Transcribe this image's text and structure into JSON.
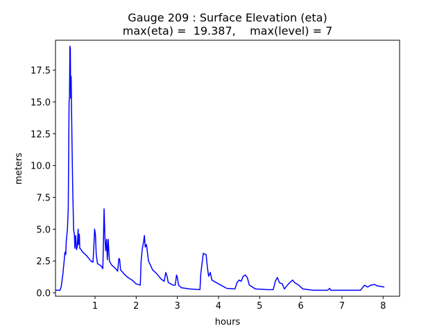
{
  "chart_data": {
    "type": "line",
    "title": [
      "Gauge 209 : Surface Elevation (eta)",
      "max(eta) =  19.387,    max(level) = 7"
    ],
    "xlabel": "hours",
    "ylabel": "meters",
    "x": [
      0.04,
      0.15,
      0.18,
      0.22,
      0.25,
      0.27,
      0.29,
      0.3,
      0.33,
      0.35,
      0.37,
      0.38,
      0.39,
      0.4,
      0.41,
      0.42,
      0.43,
      0.44,
      0.46,
      0.48,
      0.5,
      0.51,
      0.53,
      0.55,
      0.57,
      0.59,
      0.6,
      0.62,
      0.63,
      0.66,
      0.7,
      0.8,
      0.9,
      0.95,
      0.97,
      0.99,
      1.01,
      1.03,
      1.06,
      1.15,
      1.19,
      1.2,
      1.22,
      1.24,
      1.26,
      1.28,
      1.3,
      1.32,
      1.35,
      1.4,
      1.5,
      1.55,
      1.58,
      1.6,
      1.62,
      1.7,
      1.8,
      1.9,
      2.0,
      2.1,
      2.12,
      2.15,
      2.18,
      2.2,
      2.22,
      2.25,
      2.3,
      2.4,
      2.5,
      2.6,
      2.68,
      2.72,
      2.75,
      2.78,
      2.9,
      2.95,
      2.98,
      3.0,
      3.03,
      3.1,
      3.3,
      3.55,
      3.57,
      3.6,
      3.63,
      3.7,
      3.73,
      3.76,
      3.8,
      3.84,
      4.0,
      4.2,
      4.4,
      4.45,
      4.5,
      4.55,
      4.6,
      4.65,
      4.7,
      4.75,
      4.9,
      5.2,
      5.33,
      5.38,
      5.43,
      5.48,
      5.55,
      5.6,
      5.7,
      5.8,
      5.85,
      5.95,
      6.05,
      6.3,
      6.65,
      6.7,
      6.73,
      7.45,
      7.55,
      7.62,
      7.7,
      7.8,
      7.85,
      8.03
    ],
    "series": [
      {
        "name": "eta",
        "color": "#0000ff",
        "values": [
          0.2,
          0.2,
          0.5,
          1.5,
          2.5,
          3.2,
          3.0,
          4.0,
          5.0,
          6.6,
          15.0,
          15.4,
          19.387,
          19.2,
          15.3,
          17.0,
          14.5,
          12.0,
          7.9,
          5.0,
          4.5,
          3.5,
          4.5,
          3.4,
          3.6,
          5.0,
          3.8,
          4.6,
          3.5,
          3.4,
          3.2,
          2.9,
          2.5,
          2.4,
          3.5,
          5.0,
          4.6,
          3.0,
          2.3,
          2.1,
          1.9,
          3.3,
          6.6,
          4.4,
          3.3,
          4.2,
          2.6,
          4.2,
          2.5,
          2.2,
          1.9,
          1.7,
          2.7,
          2.6,
          1.8,
          1.5,
          1.2,
          1.0,
          0.7,
          0.6,
          2.5,
          3.5,
          4.0,
          4.5,
          3.6,
          3.8,
          2.5,
          1.8,
          1.5,
          1.1,
          0.9,
          1.6,
          1.3,
          0.8,
          0.6,
          0.6,
          1.4,
          1.2,
          0.6,
          0.4,
          0.3,
          0.25,
          1.5,
          2.3,
          3.1,
          3.0,
          2.0,
          1.3,
          1.6,
          1.0,
          0.7,
          0.35,
          0.3,
          0.8,
          1.0,
          0.9,
          1.3,
          1.4,
          1.2,
          0.6,
          0.3,
          0.25,
          0.25,
          0.9,
          1.2,
          0.8,
          0.7,
          0.3,
          0.7,
          1.0,
          0.8,
          0.6,
          0.3,
          0.2,
          0.2,
          0.35,
          0.2,
          0.2,
          0.6,
          0.45,
          0.6,
          0.65,
          0.55,
          0.45
        ]
      }
    ],
    "xlim": [
      0.04,
      8.4
    ],
    "ylim": [
      -0.27,
      19.85
    ],
    "xticks": [
      1,
      2,
      3,
      4,
      5,
      6,
      7,
      8
    ],
    "yticks": [
      {
        "value": 0,
        "label": "0.0"
      },
      2.5,
      {
        "value": 5,
        "label": "5.0"
      },
      7.5,
      {
        "value": 10,
        "label": "10.0"
      },
      12.5,
      {
        "value": 15,
        "label": "15.0"
      },
      17.5
    ]
  }
}
